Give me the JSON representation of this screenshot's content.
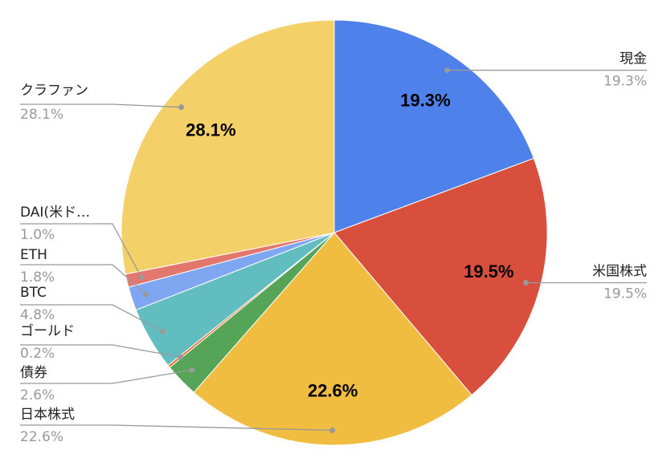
{
  "chart_data": {
    "type": "pie",
    "categories": [
      "現金",
      "米国株式",
      "日本株式",
      "債券",
      "ゴールド",
      "BTC",
      "ETH",
      "DAI(米ド…",
      "クラファン"
    ],
    "values": [
      19.3,
      19.5,
      22.6,
      2.6,
      0.2,
      4.8,
      1.8,
      1.0,
      28.1
    ],
    "value_labels": [
      "19.3%",
      "19.5%",
      "22.6%",
      "2.6%",
      "0.2%",
      "4.8%",
      "1.8%",
      "1.0%",
      "28.1%"
    ],
    "colors": [
      "#4f81ea",
      "#d94f3d",
      "#f0bd41",
      "#55a458",
      "#e6742e",
      "#62bdc1",
      "#7fa6f1",
      "#e3776d",
      "#f4d068"
    ]
  }
}
